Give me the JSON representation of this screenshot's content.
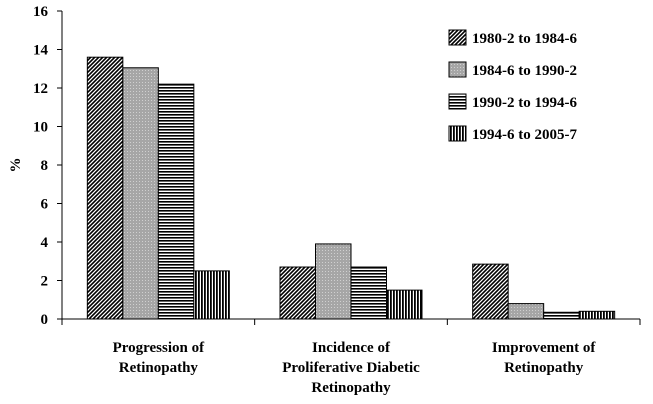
{
  "chart_data": {
    "type": "bar",
    "title": "",
    "xlabel": "",
    "ylabel": "%",
    "ylim": [
      0,
      16
    ],
    "yticks": [
      "0",
      "2",
      "4",
      "6",
      "8",
      "10",
      "12",
      "14",
      "16"
    ],
    "categories": [
      [
        "Progression of",
        "Retinopathy"
      ],
      [
        "Incidence of",
        "Proliferative Diabetic",
        "Retinopathy"
      ],
      [
        "Improvement of",
        "Retinopathy"
      ]
    ],
    "series": [
      {
        "name": "1980-2 to 1984-6",
        "pattern": "diagonal",
        "values": [
          13.6,
          2.7,
          2.85
        ]
      },
      {
        "name": "1984-6 to 1990-2",
        "pattern": "dotted-gray",
        "values": [
          13.05,
          3.9,
          0.8
        ]
      },
      {
        "name": "1990-2 to 1994-6",
        "pattern": "horizontal",
        "values": [
          12.2,
          2.7,
          0.35
        ]
      },
      {
        "name": "1994-6 to 2005-7",
        "pattern": "vertical",
        "values": [
          2.5,
          1.5,
          0.4
        ]
      }
    ],
    "legend_position": "top-right",
    "grid": false
  }
}
